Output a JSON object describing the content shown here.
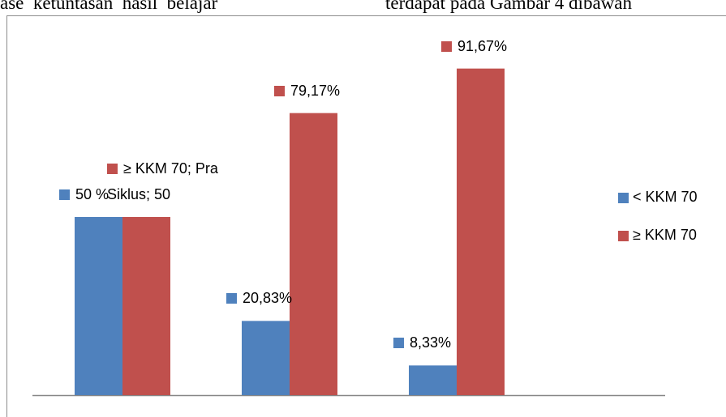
{
  "header_text": [
    "ase  ketuntasan  hasil  belajar",
    "terdapat pada Gambar 4 dibawah"
  ],
  "chart_data": {
    "type": "bar",
    "categories": [
      null,
      null,
      null
    ],
    "ylim": [
      0,
      100
    ],
    "legend": "right",
    "series": [
      {
        "name": "< KKM 70",
        "color": "#4f81bd",
        "values": [
          50,
          20.83,
          8.33
        ],
        "value_labels": [
          "50 %",
          "20,83%",
          "8,33%"
        ]
      },
      {
        "name": "≥ KKM 70",
        "color": "#c0504d",
        "values": [
          50,
          79.17,
          91.67
        ],
        "value_labels": [
          "≥ KKM 70; Pra Siklus; 50",
          "79,17%",
          "91,67%"
        ]
      }
    ]
  }
}
